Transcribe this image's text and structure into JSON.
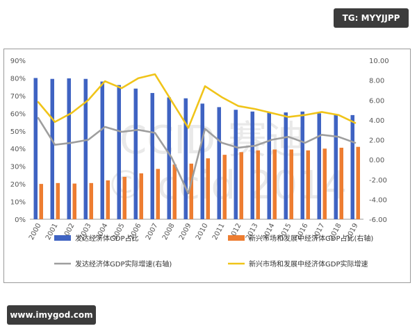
{
  "badges": {
    "tg": "TG: MYYJJPP",
    "site": "www.imygod.com"
  },
  "watermark": {
    "line1": "CCID 赛迪",
    "line2": "© ccid 2014"
  },
  "chart_data": {
    "type": "bar",
    "categories": [
      "2000",
      "2001",
      "2002",
      "2003",
      "2004",
      "2005",
      "2006",
      "2007",
      "2008",
      "2009",
      "2010",
      "2011",
      "2012",
      "2013",
      "2014",
      "2015",
      "2016",
      "2017",
      "2018",
      "2019"
    ],
    "ylim": [
      0,
      90
    ],
    "y2lim": [
      -6,
      10
    ],
    "yticks": [
      "0%",
      "10%",
      "20%",
      "30%",
      "40%",
      "50%",
      "60%",
      "70%",
      "80%",
      "90%"
    ],
    "y2ticks": [
      "-6.00",
      "-4.00",
      "-2.00",
      "0.00",
      "2.00",
      "4.00",
      "6.00",
      "8.00",
      "10.00"
    ],
    "grid": false,
    "legend_position": "bottom",
    "series": [
      {
        "name": "发达经济体GDP占比",
        "kind": "bar",
        "axis": "left",
        "color": "#3f63c2",
        "values": [
          80,
          79.5,
          79.8,
          79.5,
          78,
          76,
          74,
          71.5,
          69,
          68.5,
          65.5,
          63.5,
          62,
          61,
          60.5,
          60.5,
          61,
          60,
          59.5,
          59
        ]
      },
      {
        "name": "新兴市场和发展中经济体GDP占比(右轴)",
        "kind": "bar",
        "axis": "left",
        "color": "#ed7d31",
        "values": [
          20,
          20.5,
          20.2,
          20.5,
          22,
          24,
          26,
          28.5,
          31,
          31.5,
          34.5,
          36.5,
          38,
          39,
          39.5,
          39.5,
          39,
          40,
          40.5,
          41
        ]
      },
      {
        "name": "发达经济体GDP实际增速(右轴)",
        "kind": "line",
        "axis": "right",
        "color": "#9e9e9e",
        "values": [
          4.2,
          1.5,
          1.7,
          2.0,
          3.3,
          2.8,
          3.0,
          2.7,
          0.2,
          -3.4,
          3.1,
          1.7,
          1.2,
          1.4,
          2.0,
          2.3,
          1.7,
          2.5,
          2.3,
          1.7
        ]
      },
      {
        "name": "新兴市场和发展中经济体GDP实际增速",
        "kind": "line",
        "axis": "right",
        "color": "#f0c419",
        "values": [
          5.8,
          3.8,
          4.7,
          6.0,
          7.9,
          7.2,
          8.2,
          8.6,
          5.9,
          3.2,
          7.4,
          6.3,
          5.4,
          5.1,
          4.7,
          4.3,
          4.5,
          4.8,
          4.5,
          3.7
        ]
      }
    ]
  }
}
